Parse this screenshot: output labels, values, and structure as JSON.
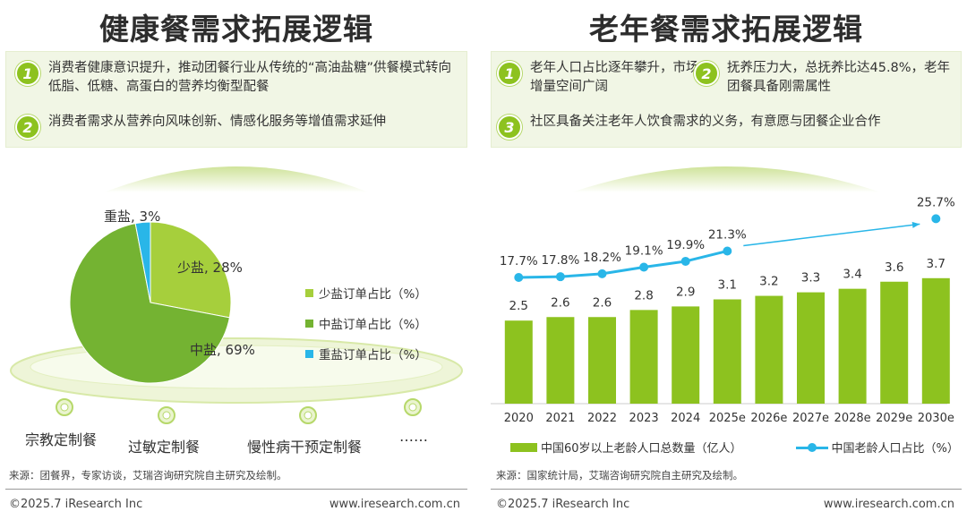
{
  "left": {
    "title": "健康餐需求拓展逻辑",
    "points": [
      {
        "num": "1",
        "text": "消费者健康意识提升，推动团餐行业从传统的“高油盐糖”供餐模式转向低脂、低糖、高蛋白的营养均衡型配餐"
      },
      {
        "num": "2",
        "text": "消费者需求从营养向风味创新、情感化服务等增值需求延伸"
      }
    ],
    "scenarios": [
      "宗教定制餐",
      "过敏定制餐",
      "慢性病干预定制餐",
      "……"
    ],
    "source": "来源：团餐界，专家访谈，艾瑞咨询研究院自主研究及绘制。",
    "copyright": "©2025.7 iResearch Inc",
    "url": "www.iresearch.com.cn"
  },
  "right": {
    "title": "老年餐需求拓展逻辑",
    "points": [
      {
        "num": "1",
        "text": "老年人口占比逐年攀升，市场增量空间广阔"
      },
      {
        "num": "2",
        "text": "抚养压力大，总抚养比达45.8%，老年团餐具备刚需属性"
      },
      {
        "num": "3",
        "text": "社区具备关注老年人饮食需求的义务，有意愿与团餐企业合作"
      }
    ],
    "source": "来源：国家统计局，艾瑞咨询研究院自主研究及绘制。",
    "copyright": "©2025.7 iResearch Inc",
    "url": "www.iresearch.com.cn"
  },
  "colors": {
    "green": "#8dc21f",
    "light_green": "#c9e07a",
    "mid_green": "#74b332",
    "blue": "#29b6e8",
    "box_bg": "#f1f6e5"
  },
  "chart_data": [
    {
      "type": "pie",
      "slices": [
        {
          "label": "少盐",
          "value": 28,
          "display": "少盐, 28%",
          "legend": "少盐订单占比（%）",
          "color": "#a6cf3c"
        },
        {
          "label": "中盐",
          "value": 69,
          "display": "中盐, 69%",
          "legend": "中盐订单占比（%）",
          "color": "#74b332"
        },
        {
          "label": "重盐",
          "value": 3,
          "display": "重盐, 3%",
          "legend": "重盐订单占比（%）",
          "color": "#29b6e8"
        }
      ]
    },
    {
      "type": "bar",
      "categories": [
        "2020",
        "2021",
        "2022",
        "2023",
        "2024",
        "2025e",
        "2026e",
        "2027e",
        "2028e",
        "2029e",
        "2030e"
      ],
      "series": [
        {
          "name": "中国60岁以上老龄人口总数量（亿人）",
          "type": "bar",
          "values": [
            2.5,
            2.6,
            2.6,
            2.8,
            2.9,
            3.1,
            3.2,
            3.3,
            3.4,
            3.6,
            3.7
          ],
          "labels": [
            "2.5",
            "2.6",
            "2.6",
            "2.8",
            "2.9",
            "3.1",
            "3.2",
            "3.3",
            "3.4",
            "3.6",
            "3.7"
          ]
        },
        {
          "name": "中国老龄人口占比（%）",
          "type": "line",
          "values": [
            17.7,
            17.8,
            18.2,
            19.1,
            19.9,
            21.3,
            null,
            null,
            null,
            null,
            25.7
          ],
          "labels": [
            "17.7%",
            "17.8%",
            "18.2%",
            "19.1%",
            "19.9%",
            "21.3%",
            "",
            "",
            "",
            "",
            "25.7%"
          ]
        }
      ]
    }
  ]
}
